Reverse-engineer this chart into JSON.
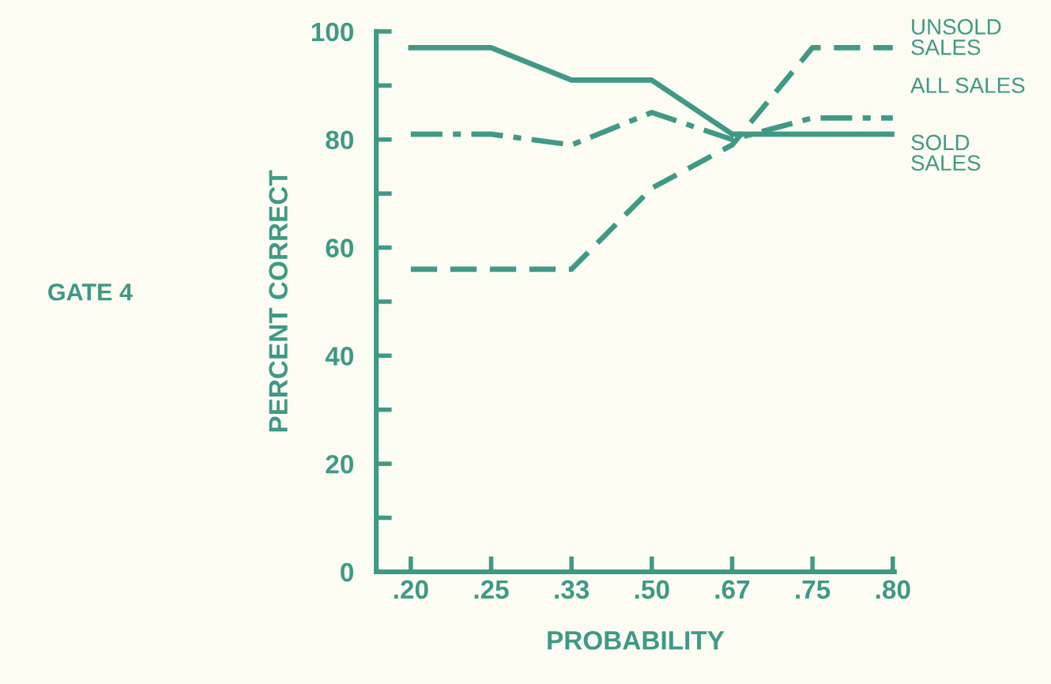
{
  "chart_data": {
    "type": "line",
    "xlabel": "PROBABILITY",
    "ylabel": "PERCENT CORRECT",
    "annotations": [
      "GATE 4"
    ],
    "categories": [
      ".20",
      ".25",
      ".33",
      ".50",
      ".67",
      ".75",
      ".80"
    ],
    "series": [
      {
        "name": "UNSOLD\nSALES",
        "color": "#3f9985",
        "line_style": "dashed",
        "values": [
          56,
          56,
          56,
          71,
          79,
          97,
          97
        ]
      },
      {
        "name": "ALL SALES",
        "color": "#3f9985",
        "line_style": "dashdot",
        "values": [
          81,
          81,
          79,
          85,
          80,
          84,
          84
        ]
      },
      {
        "name": "SOLD\nSALES",
        "color": "#3f9985",
        "line_style": "solid",
        "values": [
          97,
          97,
          91,
          91,
          81,
          81,
          81
        ]
      }
    ],
    "ylim": [
      0,
      100
    ],
    "yticks": [
      0,
      {
        "value": 10,
        "label": null
      },
      20,
      {
        "value": 30,
        "label": null
      },
      40,
      {
        "value": 50,
        "label": null
      },
      60,
      {
        "value": 70,
        "label": null
      },
      80,
      {
        "value": 90,
        "label": null
      },
      100
    ],
    "grid": false,
    "legend": false,
    "marker": "none"
  }
}
